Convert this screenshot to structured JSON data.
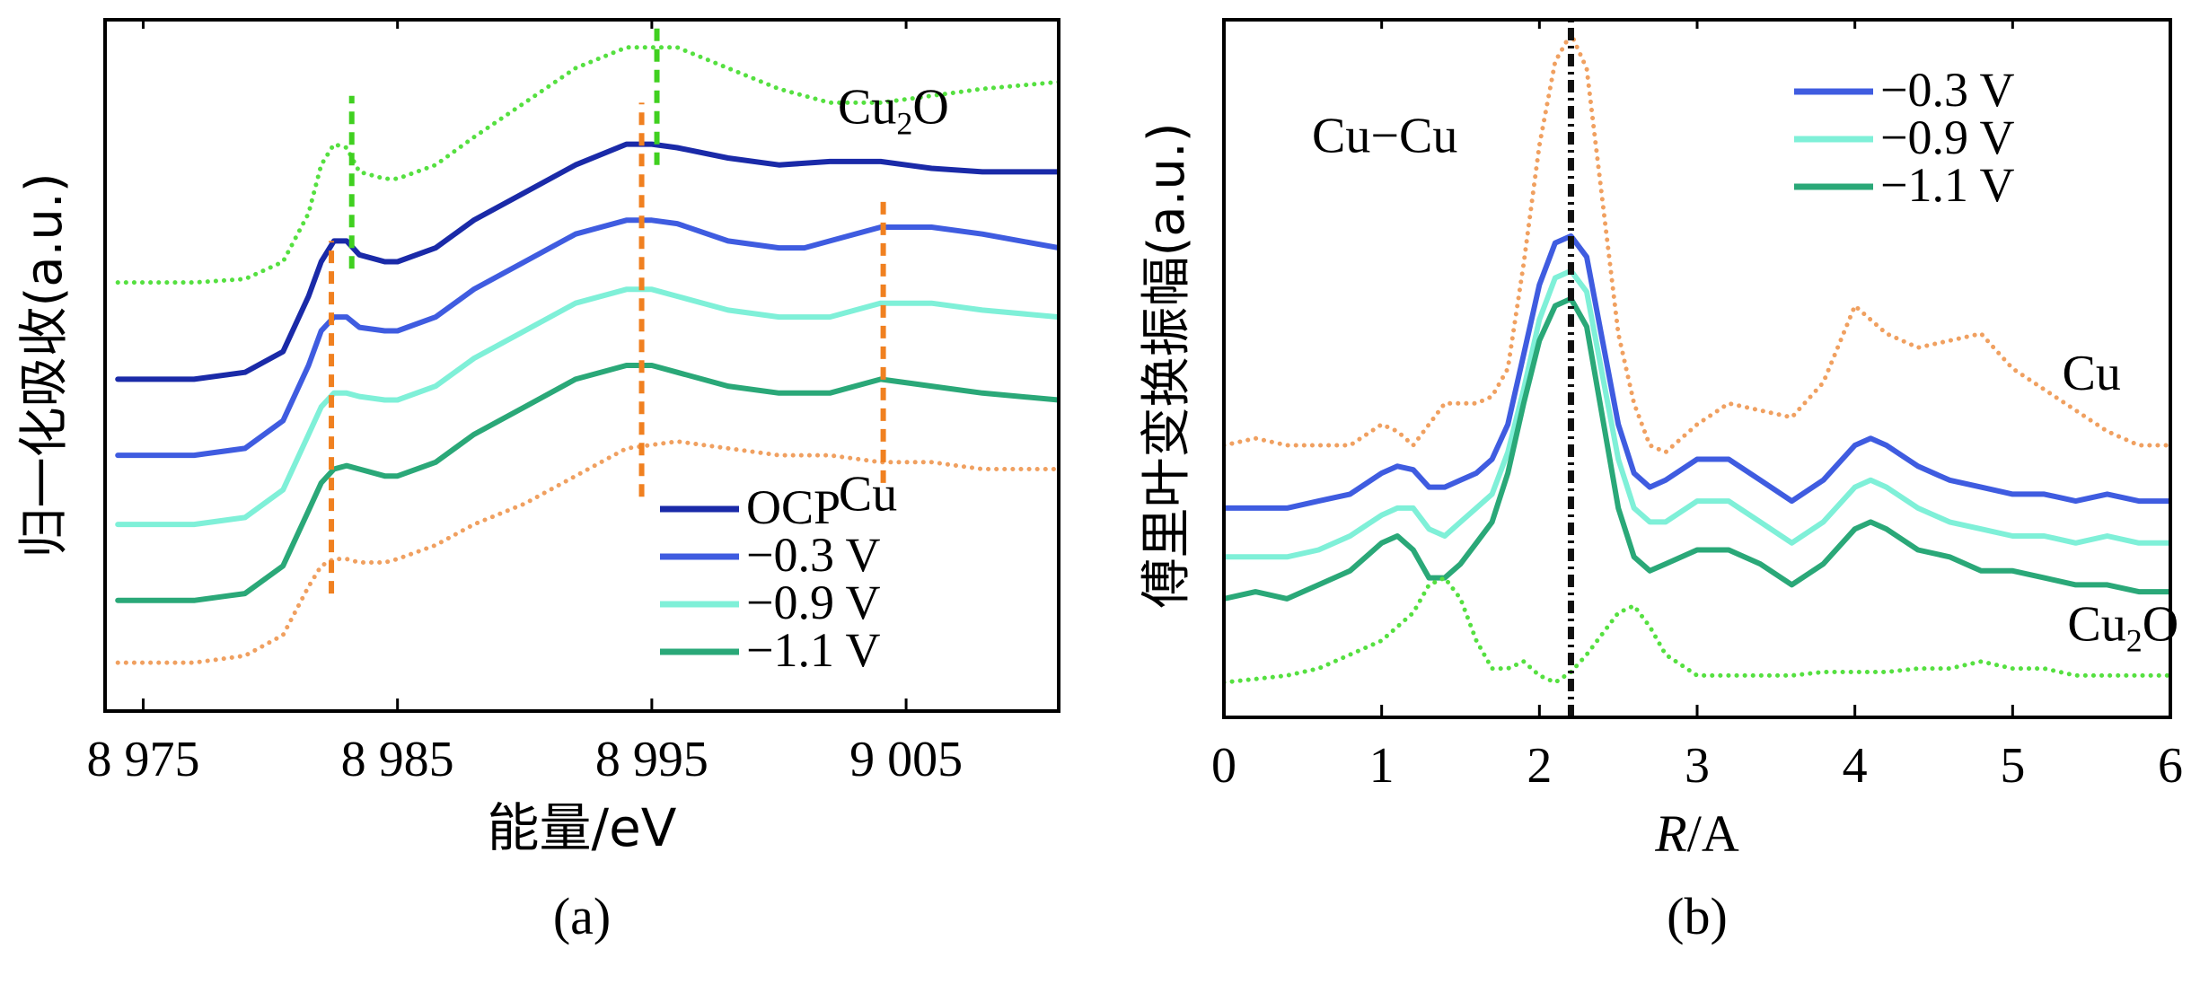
{
  "chart_data": [
    {
      "type": "line",
      "panel_label": "(a)",
      "xlabel": "能量/eV",
      "ylabel": "归一化吸收(a.u.)",
      "xlim": [
        8973.5,
        9011
      ],
      "ylim": [
        0,
        1
      ],
      "x_ticks": [
        8975,
        8985,
        8995,
        9005
      ],
      "x_tick_labels": [
        "8 975",
        "8 985",
        "8 995",
        "9 005"
      ],
      "y_ticks_shown": false,
      "grid": false,
      "legend_position": "bottom-right",
      "legend": [
        "OCP",
        "−0.3 V",
        "−0.9 V",
        "−1.1 V"
      ],
      "series": [
        {
          "name": "Cu2O",
          "label_text": "Cu",
          "label_sub": "2",
          "label_tail": "O",
          "label_at": [
            9004.5,
            0.85
          ],
          "color": "#55e040",
          "style": "dotted",
          "x": [
            8974,
            8977,
            8979,
            8980.5,
            8981.5,
            8982,
            8982.5,
            8983,
            8983.5,
            8984.5,
            8985,
            8986.5,
            8988,
            8990,
            8992,
            8994,
            8996,
            8998,
            9000,
            9002,
            9004,
            9006,
            9008,
            9011
          ],
          "y": [
            0.62,
            0.62,
            0.625,
            0.65,
            0.72,
            0.79,
            0.82,
            0.815,
            0.78,
            0.77,
            0.77,
            0.79,
            0.83,
            0.88,
            0.93,
            0.96,
            0.96,
            0.93,
            0.9,
            0.88,
            0.88,
            0.89,
            0.9,
            0.91
          ]
        },
        {
          "name": "OCP",
          "color": "#1a2aa8",
          "style": "solid",
          "x": [
            8974,
            8977,
            8979,
            8980.5,
            8981.5,
            8982,
            8982.5,
            8983,
            8983.5,
            8984.5,
            8985,
            8986.5,
            8988,
            8990,
            8992,
            8994,
            8995,
            8996,
            8998,
            9000,
            9002,
            9004,
            9006,
            9008,
            9011
          ],
          "y": [
            0.48,
            0.48,
            0.49,
            0.52,
            0.6,
            0.65,
            0.68,
            0.68,
            0.66,
            0.65,
            0.65,
            0.67,
            0.71,
            0.75,
            0.79,
            0.82,
            0.82,
            0.815,
            0.8,
            0.79,
            0.795,
            0.795,
            0.785,
            0.78,
            0.78
          ]
        },
        {
          "name": "−0.3 V",
          "color": "#3f5ce0",
          "style": "solid",
          "x": [
            8974,
            8977,
            8979,
            8980.5,
            8981.5,
            8982,
            8982.5,
            8983,
            8983.5,
            8984.5,
            8985,
            8986.5,
            8988,
            8990,
            8992,
            8994,
            8995,
            8996,
            8998,
            9000,
            9001,
            9002,
            9004,
            9006,
            9008,
            9011
          ],
          "y": [
            0.37,
            0.37,
            0.38,
            0.42,
            0.5,
            0.55,
            0.57,
            0.57,
            0.555,
            0.55,
            0.55,
            0.57,
            0.61,
            0.65,
            0.69,
            0.71,
            0.71,
            0.705,
            0.68,
            0.67,
            0.67,
            0.68,
            0.7,
            0.7,
            0.69,
            0.67
          ]
        },
        {
          "name": "−0.9 V",
          "color": "#7ff0d8",
          "style": "solid",
          "x": [
            8974,
            8977,
            8979,
            8980.5,
            8981.5,
            8982,
            8982.5,
            8983,
            8983.5,
            8984.5,
            8985,
            8986.5,
            8988,
            8990,
            8992,
            8994,
            8995,
            8996,
            8998,
            9000,
            9002,
            9004,
            9006,
            9008,
            9011
          ],
          "y": [
            0.27,
            0.27,
            0.28,
            0.32,
            0.4,
            0.44,
            0.46,
            0.46,
            0.455,
            0.45,
            0.45,
            0.47,
            0.51,
            0.55,
            0.59,
            0.61,
            0.61,
            0.6,
            0.58,
            0.57,
            0.57,
            0.59,
            0.59,
            0.58,
            0.57
          ]
        },
        {
          "name": "−1.1 V",
          "color": "#2aa878",
          "style": "solid",
          "x": [
            8974,
            8977,
            8979,
            8980.5,
            8981.5,
            8982,
            8982.5,
            8983,
            8983.5,
            8984.5,
            8985,
            8986.5,
            8988,
            8990,
            8992,
            8994,
            8995,
            8996,
            8998,
            9000,
            9002,
            9004,
            9006,
            9008,
            9011
          ],
          "y": [
            0.16,
            0.16,
            0.17,
            0.21,
            0.29,
            0.33,
            0.35,
            0.355,
            0.35,
            0.34,
            0.34,
            0.36,
            0.4,
            0.44,
            0.48,
            0.5,
            0.5,
            0.49,
            0.47,
            0.46,
            0.46,
            0.48,
            0.47,
            0.46,
            0.45
          ]
        },
        {
          "name": "Cu",
          "label_text": "Cu",
          "label_at": [
            9003.5,
            0.29
          ],
          "color": "#f0a060",
          "style": "dotted",
          "x": [
            8974,
            8977,
            8979,
            8980.5,
            8981.5,
            8982,
            8982.5,
            8983,
            8983.5,
            8984.5,
            8985,
            8986.5,
            8988,
            8990,
            8992,
            8994,
            8996,
            8998,
            9000,
            9002,
            9004,
            9006,
            9008,
            9011
          ],
          "y": [
            0.07,
            0.07,
            0.08,
            0.11,
            0.18,
            0.21,
            0.22,
            0.22,
            0.215,
            0.215,
            0.22,
            0.24,
            0.27,
            0.3,
            0.34,
            0.38,
            0.39,
            0.38,
            0.37,
            0.37,
            0.36,
            0.36,
            0.35,
            0.35
          ]
        }
      ],
      "reference_lines": [
        {
          "x": 8982.4,
          "y_range": [
            0.17,
            0.68
          ],
          "color": "#f08020"
        },
        {
          "x": 8994.6,
          "y_range": [
            0.31,
            0.88
          ],
          "color": "#f08020"
        },
        {
          "x": 9004.1,
          "y_range": [
            0.33,
            0.74
          ],
          "color": "#f08020"
        },
        {
          "x": 8983.2,
          "y_range": [
            0.64,
            0.89
          ],
          "color": "#40d020"
        },
        {
          "x": 8995.2,
          "y_range": [
            0.79,
            0.99
          ],
          "color": "#40d020"
        }
      ]
    },
    {
      "type": "line",
      "panel_label": "(b)",
      "xlabel_italic": "R",
      "xlabel_rest": "/A",
      "ylabel": "傅里叶变换振幅(a.u.)",
      "xlim": [
        0,
        6
      ],
      "ylim": [
        0,
        1
      ],
      "x_ticks": [
        0,
        1,
        2,
        3,
        4,
        5,
        6
      ],
      "x_tick_labels": [
        "0",
        "1",
        "2",
        "3",
        "4",
        "5",
        "6"
      ],
      "y_ticks_shown": false,
      "grid": false,
      "legend_position": "top-right",
      "legend": [
        "−0.3 V",
        "−0.9 V",
        "−1.1 V"
      ],
      "annotation": {
        "text": "Cu−Cu",
        "at": [
          1.02,
          0.81
        ]
      },
      "series": [
        {
          "name": "Cu",
          "label_text": "Cu",
          "label_at": [
            5.5,
            0.47
          ],
          "color": "#f0a060",
          "style": "dotted",
          "x": [
            0,
            0.2,
            0.4,
            0.6,
            0.8,
            1.0,
            1.1,
            1.2,
            1.3,
            1.4,
            1.5,
            1.6,
            1.7,
            1.8,
            1.9,
            2.0,
            2.1,
            2.2,
            2.3,
            2.4,
            2.5,
            2.6,
            2.7,
            2.8,
            3.0,
            3.2,
            3.4,
            3.6,
            3.8,
            4.0,
            4.2,
            4.4,
            4.6,
            4.8,
            5.0,
            5.2,
            5.4,
            5.6,
            5.8,
            6.0
          ],
          "y": [
            0.39,
            0.4,
            0.39,
            0.39,
            0.39,
            0.42,
            0.41,
            0.39,
            0.42,
            0.45,
            0.45,
            0.45,
            0.46,
            0.5,
            0.65,
            0.82,
            0.94,
            0.98,
            0.93,
            0.74,
            0.55,
            0.45,
            0.39,
            0.38,
            0.42,
            0.45,
            0.44,
            0.43,
            0.48,
            0.59,
            0.55,
            0.53,
            0.54,
            0.55,
            0.5,
            0.47,
            0.44,
            0.41,
            0.39,
            0.39
          ]
        },
        {
          "name": "−0.3 V",
          "color": "#3f5ce0",
          "style": "solid",
          "x": [
            0,
            0.2,
            0.4,
            0.6,
            0.8,
            1.0,
            1.1,
            1.2,
            1.3,
            1.4,
            1.5,
            1.6,
            1.7,
            1.8,
            1.9,
            2.0,
            2.1,
            2.2,
            2.3,
            2.4,
            2.5,
            2.6,
            2.7,
            2.8,
            3.0,
            3.2,
            3.4,
            3.6,
            3.8,
            4.0,
            4.1,
            4.2,
            4.4,
            4.6,
            4.8,
            5.0,
            5.2,
            5.4,
            5.6,
            5.8,
            6.0
          ],
          "y": [
            0.3,
            0.3,
            0.3,
            0.31,
            0.32,
            0.35,
            0.36,
            0.355,
            0.33,
            0.33,
            0.34,
            0.35,
            0.37,
            0.42,
            0.52,
            0.62,
            0.68,
            0.69,
            0.66,
            0.54,
            0.42,
            0.35,
            0.33,
            0.34,
            0.37,
            0.37,
            0.34,
            0.31,
            0.34,
            0.39,
            0.4,
            0.39,
            0.36,
            0.34,
            0.33,
            0.32,
            0.32,
            0.31,
            0.32,
            0.31,
            0.31
          ]
        },
        {
          "name": "−0.9 V",
          "color": "#7ff0d8",
          "style": "solid",
          "x": [
            0,
            0.2,
            0.4,
            0.6,
            0.8,
            1.0,
            1.1,
            1.2,
            1.3,
            1.4,
            1.5,
            1.6,
            1.7,
            1.8,
            1.9,
            2.0,
            2.1,
            2.2,
            2.3,
            2.4,
            2.5,
            2.6,
            2.7,
            2.8,
            3.0,
            3.2,
            3.4,
            3.6,
            3.8,
            4.0,
            4.1,
            4.2,
            4.4,
            4.6,
            4.8,
            5.0,
            5.2,
            5.4,
            5.6,
            5.8,
            6.0
          ],
          "y": [
            0.23,
            0.23,
            0.23,
            0.24,
            0.26,
            0.29,
            0.3,
            0.3,
            0.27,
            0.26,
            0.28,
            0.3,
            0.32,
            0.38,
            0.47,
            0.57,
            0.63,
            0.64,
            0.61,
            0.49,
            0.37,
            0.3,
            0.28,
            0.28,
            0.31,
            0.31,
            0.28,
            0.25,
            0.28,
            0.33,
            0.34,
            0.33,
            0.3,
            0.28,
            0.27,
            0.26,
            0.26,
            0.25,
            0.26,
            0.25,
            0.25
          ]
        },
        {
          "name": "−1.1 V",
          "color": "#2aa878",
          "style": "solid",
          "x": [
            0,
            0.2,
            0.4,
            0.6,
            0.8,
            1.0,
            1.1,
            1.2,
            1.3,
            1.4,
            1.5,
            1.6,
            1.7,
            1.8,
            1.9,
            2.0,
            2.1,
            2.2,
            2.3,
            2.4,
            2.5,
            2.6,
            2.7,
            2.8,
            3.0,
            3.2,
            3.4,
            3.6,
            3.8,
            4.0,
            4.1,
            4.2,
            4.4,
            4.6,
            4.8,
            5.0,
            5.2,
            5.4,
            5.6,
            5.8,
            6.0
          ],
          "y": [
            0.17,
            0.18,
            0.17,
            0.19,
            0.21,
            0.25,
            0.26,
            0.24,
            0.2,
            0.2,
            0.22,
            0.25,
            0.28,
            0.35,
            0.45,
            0.54,
            0.59,
            0.6,
            0.56,
            0.43,
            0.3,
            0.23,
            0.21,
            0.22,
            0.24,
            0.24,
            0.22,
            0.19,
            0.22,
            0.27,
            0.28,
            0.27,
            0.24,
            0.23,
            0.21,
            0.21,
            0.2,
            0.19,
            0.19,
            0.18,
            0.18
          ]
        },
        {
          "name": "Cu2O",
          "label_text": "Cu",
          "label_sub": "2",
          "label_tail": "O",
          "label_at": [
            5.7,
            0.11
          ],
          "color": "#55e040",
          "style": "dotted",
          "x": [
            0,
            0.2,
            0.4,
            0.6,
            0.8,
            1.0,
            1.2,
            1.3,
            1.4,
            1.5,
            1.6,
            1.7,
            1.8,
            1.9,
            2.0,
            2.1,
            2.2,
            2.3,
            2.4,
            2.5,
            2.6,
            2.7,
            2.8,
            3.0,
            3.2,
            3.4,
            3.6,
            3.8,
            4.0,
            4.2,
            4.4,
            4.6,
            4.8,
            5.0,
            5.2,
            5.4,
            5.6,
            5.8,
            6.0
          ],
          "y": [
            0.05,
            0.055,
            0.06,
            0.07,
            0.09,
            0.11,
            0.15,
            0.19,
            0.2,
            0.17,
            0.11,
            0.07,
            0.07,
            0.08,
            0.06,
            0.05,
            0.065,
            0.09,
            0.12,
            0.15,
            0.16,
            0.13,
            0.09,
            0.06,
            0.06,
            0.06,
            0.06,
            0.065,
            0.065,
            0.065,
            0.07,
            0.07,
            0.08,
            0.07,
            0.07,
            0.06,
            0.06,
            0.06,
            0.06
          ]
        }
      ],
      "reference_lines": [
        {
          "x": 2.2,
          "y_range": [
            0.0,
            1.0
          ],
          "color": "#111111"
        }
      ]
    }
  ]
}
